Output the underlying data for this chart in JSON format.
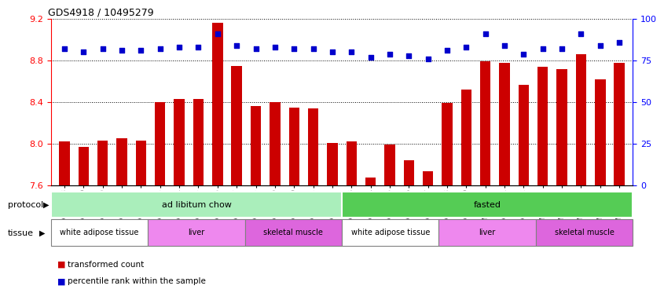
{
  "title": "GDS4918 / 10495279",
  "samples": [
    "GSM1131278",
    "GSM1131279",
    "GSM1131280",
    "GSM1131281",
    "GSM1131282",
    "GSM1131283",
    "GSM1131284",
    "GSM1131285",
    "GSM1131286",
    "GSM1131287",
    "GSM1131288",
    "GSM1131289",
    "GSM1131290",
    "GSM1131291",
    "GSM1131292",
    "GSM1131293",
    "GSM1131294",
    "GSM1131295",
    "GSM1131296",
    "GSM1131297",
    "GSM1131298",
    "GSM1131299",
    "GSM1131300",
    "GSM1131301",
    "GSM1131302",
    "GSM1131303",
    "GSM1131304",
    "GSM1131305",
    "GSM1131306",
    "GSM1131307"
  ],
  "bar_values": [
    8.02,
    7.97,
    8.03,
    8.05,
    8.03,
    8.4,
    8.43,
    8.43,
    9.16,
    8.75,
    8.36,
    8.4,
    8.35,
    8.34,
    8.01,
    8.02,
    7.68,
    7.99,
    7.84,
    7.74,
    8.39,
    8.52,
    8.79,
    8.78,
    8.57,
    8.74,
    8.72,
    8.86,
    8.62,
    8.78
  ],
  "percentile_values": [
    82,
    80,
    82,
    81,
    81,
    82,
    83,
    83,
    91,
    84,
    82,
    83,
    82,
    82,
    80,
    80,
    77,
    79,
    78,
    76,
    81,
    83,
    91,
    84,
    79,
    82,
    82,
    91,
    84,
    86
  ],
  "ylim": [
    7.6,
    9.2
  ],
  "yticks_left": [
    7.6,
    8.0,
    8.4,
    8.8,
    9.2
  ],
  "yticks_right": [
    0,
    25,
    50,
    75,
    100
  ],
  "bar_color": "#cc0000",
  "percentile_color": "#0000cc",
  "background_color": "#ffffff",
  "protocol_groups": [
    {
      "label": "ad libitum chow",
      "start": 0,
      "end": 14,
      "color": "#aaeebb"
    },
    {
      "label": "fasted",
      "start": 15,
      "end": 29,
      "color": "#55cc55"
    }
  ],
  "tissue_groups": [
    {
      "label": "white adipose tissue",
      "start": 0,
      "end": 4,
      "color": "#ffffff"
    },
    {
      "label": "liver",
      "start": 5,
      "end": 9,
      "color": "#ee88ee"
    },
    {
      "label": "skeletal muscle",
      "start": 10,
      "end": 14,
      "color": "#dd66dd"
    },
    {
      "label": "white adipose tissue",
      "start": 15,
      "end": 19,
      "color": "#ffffff"
    },
    {
      "label": "liver",
      "start": 20,
      "end": 24,
      "color": "#ee88ee"
    },
    {
      "label": "skeletal muscle",
      "start": 25,
      "end": 29,
      "color": "#dd66dd"
    }
  ],
  "legend_items": [
    {
      "label": "transformed count",
      "color": "#cc0000"
    },
    {
      "label": "percentile rank within the sample",
      "color": "#0000cc"
    }
  ]
}
